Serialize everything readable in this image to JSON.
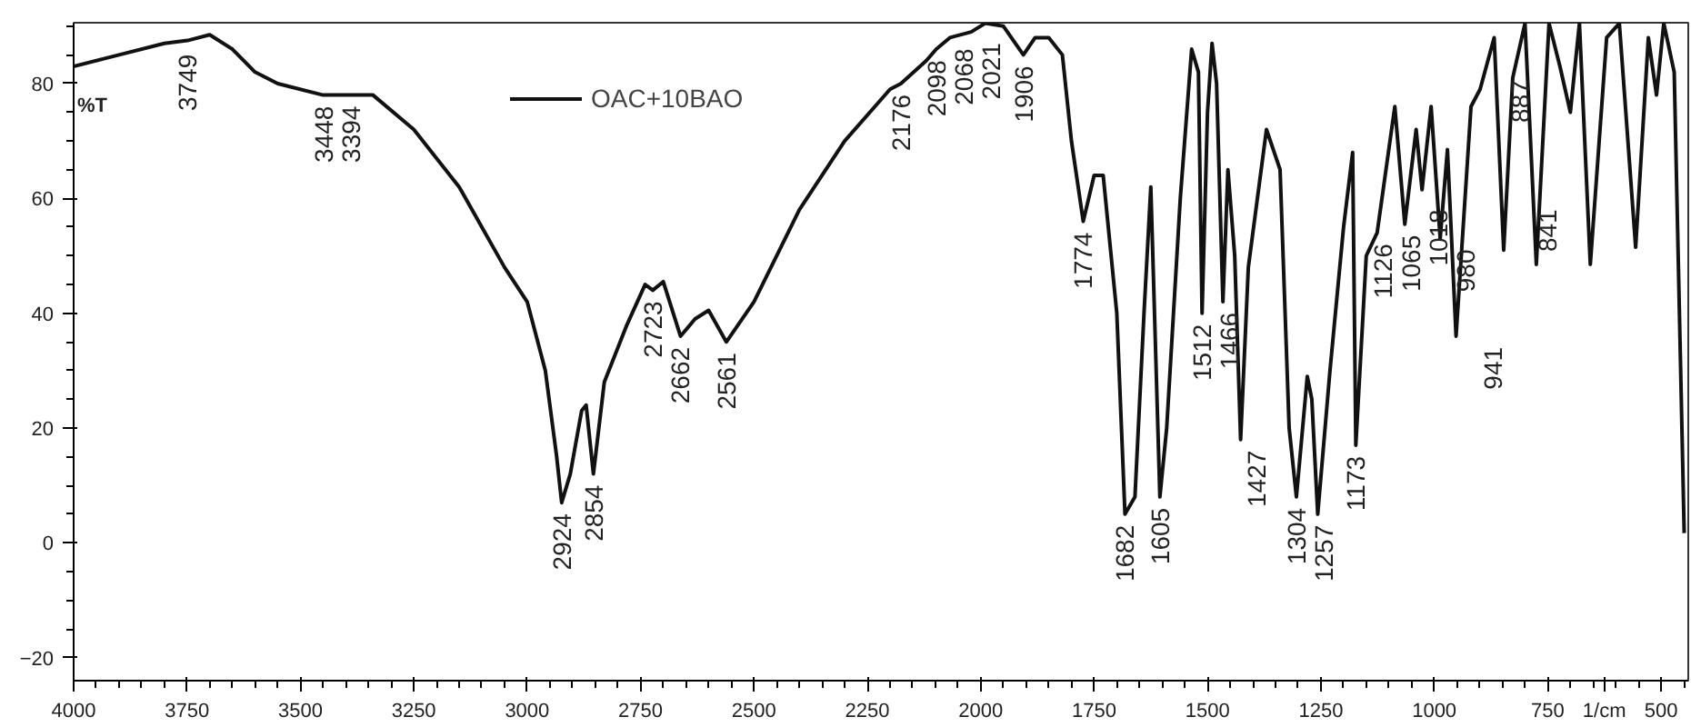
{
  "chart_data": {
    "type": "line",
    "ylabel": "%T",
    "xlabel": "1/cm",
    "legend": "top",
    "marker": "none",
    "grid": false,
    "xlim": [
      4000,
      440
    ],
    "ylim": [
      -24,
      90.6
    ],
    "xticks": [
      4000,
      3750,
      3500,
      3250,
      3000,
      2750,
      2500,
      2250,
      2000,
      1750,
      1500,
      1250,
      1000,
      750,
      500
    ],
    "yticks": [
      -20,
      0,
      20,
      40,
      60,
      80
    ],
    "x": [
      4000,
      3900,
      3800,
      3749,
      3700,
      3650,
      3600,
      3550,
      3450,
      3394,
      3340,
      3250,
      3150,
      3050,
      3000,
      2960,
      2935,
      2924,
      2905,
      2880,
      2870,
      2854,
      2830,
      2780,
      2740,
      2723,
      2700,
      2662,
      2630,
      2600,
      2561,
      2500,
      2400,
      2300,
      2200,
      2176,
      2120,
      2098,
      2068,
      2021,
      1990,
      1950,
      1906,
      1880,
      1850,
      1820,
      1800,
      1774,
      1750,
      1730,
      1700,
      1682,
      1660,
      1640,
      1625,
      1605,
      1590,
      1560,
      1535,
      1520,
      1512,
      1500,
      1490,
      1480,
      1466,
      1455,
      1440,
      1427,
      1410,
      1390,
      1370,
      1340,
      1320,
      1304,
      1280,
      1270,
      1257,
      1230,
      1200,
      1180,
      1173,
      1150,
      1126,
      1087,
      1065,
      1040,
      1027,
      1007,
      987,
      971,
      952,
      919,
      899,
      868,
      847,
      827,
      800,
      775,
      747,
      723,
      700,
      680,
      656,
      620,
      592,
      556,
      528,
      510,
      494,
      471,
      449
    ],
    "series": [
      {
        "name": "OAC+10BAO",
        "color": "#111111",
        "values": [
          83,
          85,
          87,
          87.5,
          88.5,
          86,
          82,
          80,
          78,
          78,
          78,
          72,
          62,
          48,
          42,
          30,
          15,
          7,
          12,
          23,
          24,
          12,
          28,
          38,
          45,
          44,
          45.5,
          36,
          39,
          40.5,
          35,
          42,
          58,
          70,
          79,
          80,
          84,
          86,
          88,
          89,
          90.5,
          90,
          85,
          88,
          88,
          85,
          70,
          56,
          64,
          64,
          40,
          5,
          8,
          40,
          62,
          8,
          20,
          60,
          86,
          82,
          40,
          75,
          87,
          80,
          42,
          65,
          50,
          18,
          48,
          60,
          72,
          65,
          20,
          8,
          29,
          25,
          5,
          30,
          55,
          68,
          17,
          50,
          54,
          76,
          55.5,
          72,
          61.5,
          76,
          53,
          68.5,
          36,
          76,
          79,
          88,
          51,
          81,
          90.5,
          48.5,
          90.5,
          83,
          75,
          90.5,
          48.5,
          88,
          90.5,
          51.5,
          88,
          78,
          90.5,
          82,
          1.7
        ]
      }
    ],
    "annotations": [
      {
        "text": "3749",
        "x": 3749,
        "y": 87
      },
      {
        "text": "3448",
        "x": 3448,
        "y": 78
      },
      {
        "text": "3394",
        "x": 3394,
        "y": 78
      },
      {
        "text": "2924",
        "x": 2924,
        "y": 7
      },
      {
        "text": "2854",
        "x": 2854,
        "y": 12
      },
      {
        "text": "2723",
        "x": 2723,
        "y": 44
      },
      {
        "text": "2662",
        "x": 2662,
        "y": 36
      },
      {
        "text": "2561",
        "x": 2561,
        "y": 35
      },
      {
        "text": "2176",
        "x": 2176,
        "y": 80
      },
      {
        "text": "2098",
        "x": 2098,
        "y": 86
      },
      {
        "text": "2068",
        "x": 2068,
        "y": 88
      },
      {
        "text": "2021",
        "x": 2021,
        "y": 89
      },
      {
        "text": "1906",
        "x": 1906,
        "y": 85
      },
      {
        "text": "1774",
        "x": 1774,
        "y": 56
      },
      {
        "text": "1682",
        "x": 1682,
        "y": 5
      },
      {
        "text": "1605",
        "x": 1605,
        "y": 8
      },
      {
        "text": "1512",
        "x": 1512,
        "y": 40
      },
      {
        "text": "1466",
        "x": 1466,
        "y": 42
      },
      {
        "text": "1427",
        "x": 1427,
        "y": 18
      },
      {
        "text": "1304",
        "x": 1304,
        "y": 8
      },
      {
        "text": "1257",
        "x": 1257,
        "y": 5
      },
      {
        "text": "1173",
        "x": 1173,
        "y": 17
      },
      {
        "text": "1126",
        "x": 1126,
        "y": 54
      },
      {
        "text": "1065",
        "x": 1065,
        "y": 55.5
      },
      {
        "text": "1018",
        "x": 1018,
        "y": 60
      },
      {
        "text": "980",
        "x": 980,
        "y": 53
      },
      {
        "text": "941",
        "x": 941,
        "y": 36
      },
      {
        "text": "887",
        "x": 887,
        "y": 82.5
      },
      {
        "text": "841",
        "x": 841,
        "y": 60
      }
    ]
  }
}
